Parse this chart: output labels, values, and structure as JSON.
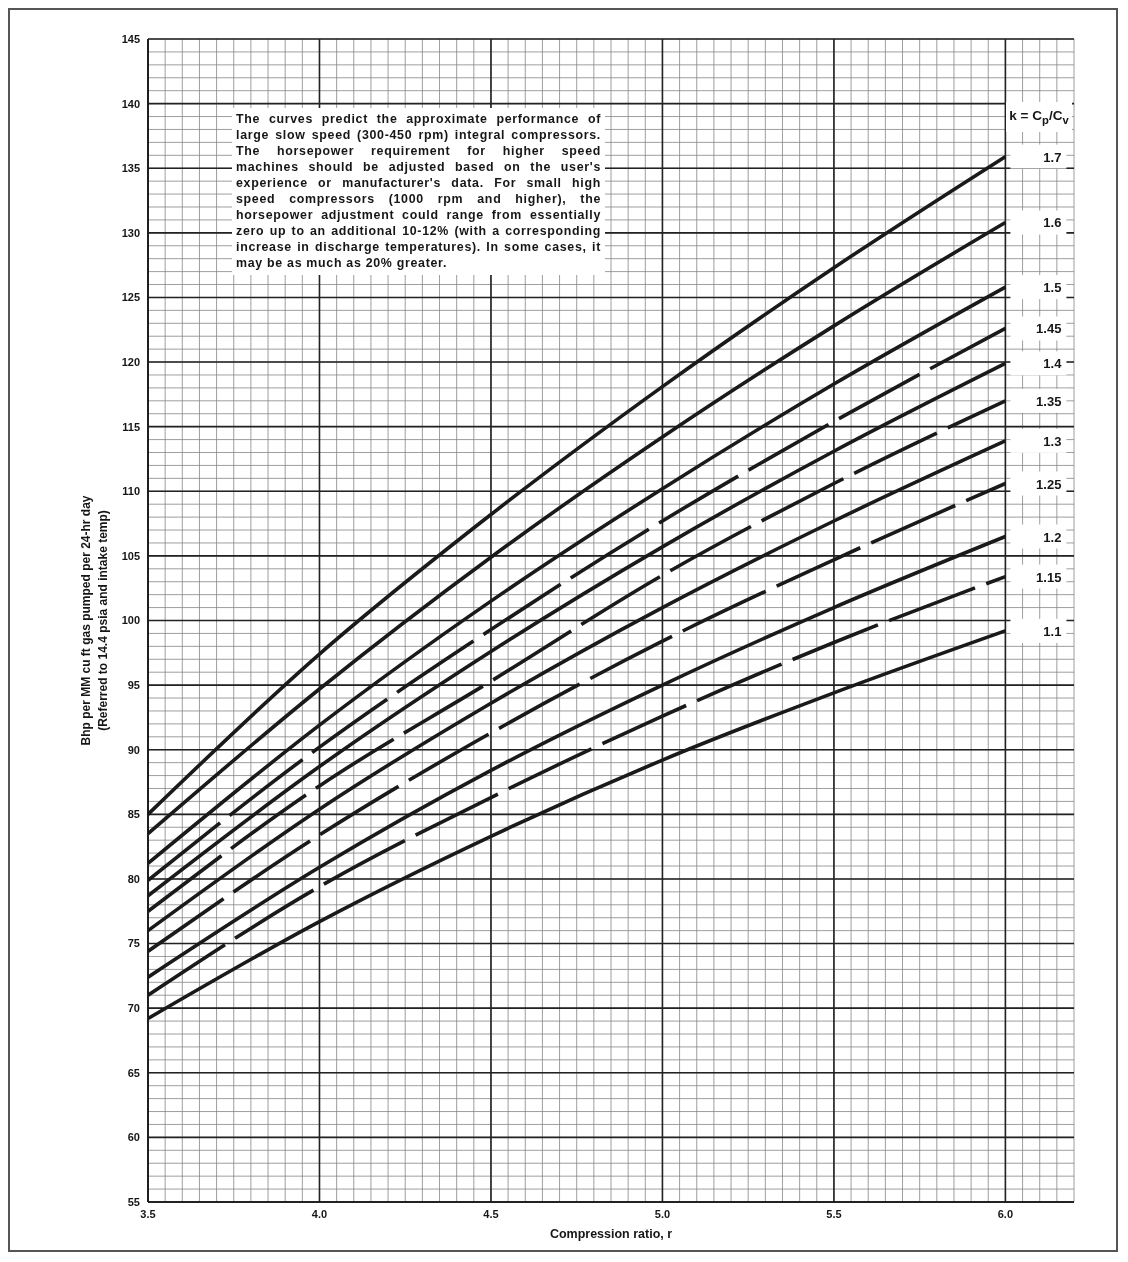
{
  "chart_data": {
    "type": "line",
    "xlabel": "Compression ratio, r",
    "ylabel": "Bhp per MM cu ft gas pumped per 24-hr day\n(Referred to 14.4 psia and intake temp)",
    "legend_title": "k = C$_{p}$/C$_{v}$",
    "annotations": [
      "The curves predict the approximate performance of large slow speed (300-450 rpm) integral compressors. The horsepower requirement for higher speed machines should be adjusted based on the user's experience or manufacturer's data. For small high speed compressors (1000 rpm and higher), the horsepower adjustment could range from essentially zero up to an additional 10-12% (with a corresponding increase in discharge temperatures). In some cases, it may be as much as 20% greater."
    ],
    "x": [
      3.5,
      4.0,
      4.5,
      5.0,
      5.5,
      6.0
    ],
    "series": [
      {
        "name": "1.7",
        "color": "#1a1a1a",
        "values": [
          85.0,
          97.4,
          108.2,
          118.1,
          127.3,
          135.9
        ]
      },
      {
        "name": "1.6",
        "color": "#1a1a1a",
        "values": [
          83.5,
          94.7,
          104.9,
          114.2,
          122.8,
          130.8
        ]
      },
      {
        "name": "1.5",
        "color": "#1a1a1a",
        "values": [
          81.2,
          91.9,
          101.5,
          110.2,
          118.3,
          125.8
        ]
      },
      {
        "name": "1.45",
        "color": "#1a1a1a",
        "line_style": "dashed",
        "values": [
          79.9,
          90.2,
          99.3,
          107.7,
          115.4,
          122.6
        ]
      },
      {
        "name": "1.4",
        "color": "#1a1a1a",
        "values": [
          78.7,
          88.7,
          97.6,
          105.7,
          113.1,
          119.9
        ]
      },
      {
        "name": "1.35",
        "color": "#1a1a1a",
        "line_style": "dashed",
        "values": [
          77.5,
          87.2,
          95.3,
          103.5,
          110.6,
          117.0
        ]
      },
      {
        "name": "1.3",
        "color": "#1a1a1a",
        "values": [
          76.0,
          85.4,
          93.6,
          101.0,
          107.7,
          113.9
        ]
      },
      {
        "name": "1.25",
        "color": "#1a1a1a",
        "line_style": "dashed",
        "values": [
          74.4,
          83.4,
          91.3,
          98.4,
          104.7,
          110.6
        ]
      },
      {
        "name": "1.2",
        "color": "#1a1a1a",
        "values": [
          72.4,
          80.9,
          88.4,
          95.0,
          101.0,
          106.5
        ]
      },
      {
        "name": "1.15",
        "color": "#1a1a1a",
        "line_style": "dashed",
        "values": [
          71.0,
          79.4,
          86.3,
          92.6,
          98.3,
          103.4
        ]
      },
      {
        "name": "1.1",
        "color": "#1a1a1a",
        "values": [
          69.2,
          76.7,
          83.3,
          89.2,
          94.4,
          99.2
        ]
      }
    ],
    "line_style": "solid",
    "xlim": [
      3.5,
      6.2
    ],
    "xticks": [
      3.5,
      {
        "value": 3.55,
        "label": null
      },
      {
        "value": 3.6,
        "label": null
      },
      {
        "value": 3.65,
        "label": null
      },
      {
        "value": 3.7,
        "label": null
      },
      {
        "value": 3.75,
        "label": null
      },
      {
        "value": 3.8,
        "label": null
      },
      {
        "value": 3.85,
        "label": null
      },
      {
        "value": 3.9,
        "label": null
      },
      {
        "value": 3.95,
        "label": null
      },
      {
        "value": 4,
        "label": "4.0"
      },
      {
        "value": 4.05,
        "label": null
      },
      {
        "value": 4.1,
        "label": null
      },
      {
        "value": 4.15,
        "label": null
      },
      {
        "value": 4.2,
        "label": null
      },
      {
        "value": 4.25,
        "label": null
      },
      {
        "value": 4.3,
        "label": null
      },
      {
        "value": 4.35,
        "label": null
      },
      {
        "value": 4.4,
        "label": null
      },
      {
        "value": 4.45,
        "label": null
      },
      4.5,
      {
        "value": 4.55,
        "label": null
      },
      {
        "value": 4.6,
        "label": null
      },
      {
        "value": 4.65,
        "label": null
      },
      {
        "value": 4.7,
        "label": null
      },
      {
        "value": 4.75,
        "label": null
      },
      {
        "value": 4.8,
        "label": null
      },
      {
        "value": 4.85,
        "label": null
      },
      {
        "value": 4.9,
        "label": null
      },
      {
        "value": 4.95,
        "label": null
      },
      {
        "value": 5,
        "label": "5.0"
      },
      {
        "value": 5.05,
        "label": null
      },
      {
        "value": 5.1,
        "label": null
      },
      {
        "value": 5.15,
        "label": null
      },
      {
        "value": 5.2,
        "label": null
      },
      {
        "value": 5.25,
        "label": null
      },
      {
        "value": 5.3,
        "label": null
      },
      {
        "value": 5.35,
        "label": null
      },
      {
        "value": 5.4,
        "label": null
      },
      {
        "value": 5.45,
        "label": null
      },
      5.5,
      {
        "value": 5.55,
        "label": null
      },
      {
        "value": 5.6,
        "label": null
      },
      {
        "value": 5.65,
        "label": null
      },
      {
        "value": 5.7,
        "label": null
      },
      {
        "value": 5.75,
        "label": null
      },
      {
        "value": 5.8,
        "label": null
      },
      {
        "value": 5.85,
        "label": null
      },
      {
        "value": 5.9,
        "label": null
      },
      {
        "value": 5.95,
        "label": null
      },
      {
        "value": 6,
        "label": "6.0"
      },
      {
        "value": 6.05,
        "label": null
      },
      {
        "value": 6.1,
        "label": null
      },
      {
        "value": 6.15,
        "label": null
      },
      {
        "value": 6.2,
        "label": null
      }
    ],
    "ylim": [
      55,
      145
    ],
    "yticks": [
      55,
      {
        "value": 56,
        "label": null
      },
      {
        "value": 57,
        "label": null
      },
      {
        "value": 58,
        "label": null
      },
      {
        "value": 59,
        "label": null
      },
      60,
      {
        "value": 61,
        "label": null
      },
      {
        "value": 62,
        "label": null
      },
      {
        "value": 63,
        "label": null
      },
      {
        "value": 64,
        "label": null
      },
      65,
      {
        "value": 66,
        "label": null
      },
      {
        "value": 67,
        "label": null
      },
      {
        "value": 68,
        "label": null
      },
      {
        "value": 69,
        "label": null
      },
      70,
      {
        "value": 71,
        "label": null
      },
      {
        "value": 72,
        "label": null
      },
      {
        "value": 73,
        "label": null
      },
      {
        "value": 74,
        "label": null
      },
      75,
      {
        "value": 76,
        "label": null
      },
      {
        "value": 77,
        "label": null
      },
      {
        "value": 78,
        "label": null
      },
      {
        "value": 79,
        "label": null
      },
      80,
      {
        "value": 81,
        "label": null
      },
      {
        "value": 82,
        "label": null
      },
      {
        "value": 83,
        "label": null
      },
      {
        "value": 84,
        "label": null
      },
      85,
      {
        "value": 86,
        "label": null
      },
      {
        "value": 87,
        "label": null
      },
      {
        "value": 88,
        "label": null
      },
      {
        "value": 89,
        "label": null
      },
      90,
      {
        "value": 91,
        "label": null
      },
      {
        "value": 92,
        "label": null
      },
      {
        "value": 93,
        "label": null
      },
      {
        "value": 94,
        "label": null
      },
      95,
      {
        "value": 96,
        "label": null
      },
      {
        "value": 97,
        "label": null
      },
      {
        "value": 98,
        "label": null
      },
      {
        "value": 99,
        "label": null
      },
      100,
      {
        "value": 101,
        "label": null
      },
      {
        "value": 102,
        "label": null
      },
      {
        "value": 103,
        "label": null
      },
      {
        "value": 104,
        "label": null
      },
      105,
      {
        "value": 106,
        "label": null
      },
      {
        "value": 107,
        "label": null
      },
      {
        "value": 108,
        "label": null
      },
      {
        "value": 109,
        "label": null
      },
      110,
      {
        "value": 111,
        "label": null
      },
      {
        "value": 112,
        "label": null
      },
      {
        "value": 113,
        "label": null
      },
      {
        "value": 114,
        "label": null
      },
      115,
      {
        "value": 116,
        "label": null
      },
      {
        "value": 117,
        "label": null
      },
      {
        "value": 118,
        "label": null
      },
      {
        "value": 119,
        "label": null
      },
      120,
      {
        "value": 121,
        "label": null
      },
      {
        "value": 122,
        "label": null
      },
      {
        "value": 123,
        "label": null
      },
      {
        "value": 124,
        "label": null
      },
      125,
      {
        "value": 126,
        "label": null
      },
      {
        "value": 127,
        "label": null
      },
      {
        "value": 128,
        "label": null
      },
      {
        "value": 129,
        "label": null
      },
      130,
      {
        "value": 131,
        "label": null
      },
      {
        "value": 132,
        "label": null
      },
      {
        "value": 133,
        "label": null
      },
      {
        "value": 134,
        "label": null
      },
      135,
      {
        "value": 136,
        "label": null
      },
      {
        "value": 137,
        "label": null
      },
      {
        "value": 138,
        "label": null
      },
      {
        "value": 139,
        "label": null
      },
      140,
      {
        "value": 141,
        "label": null
      },
      {
        "value": 142,
        "label": null
      },
      {
        "value": 143,
        "label": null
      },
      {
        "value": 144,
        "label": null
      },
      145
    ],
    "grid": true
  }
}
